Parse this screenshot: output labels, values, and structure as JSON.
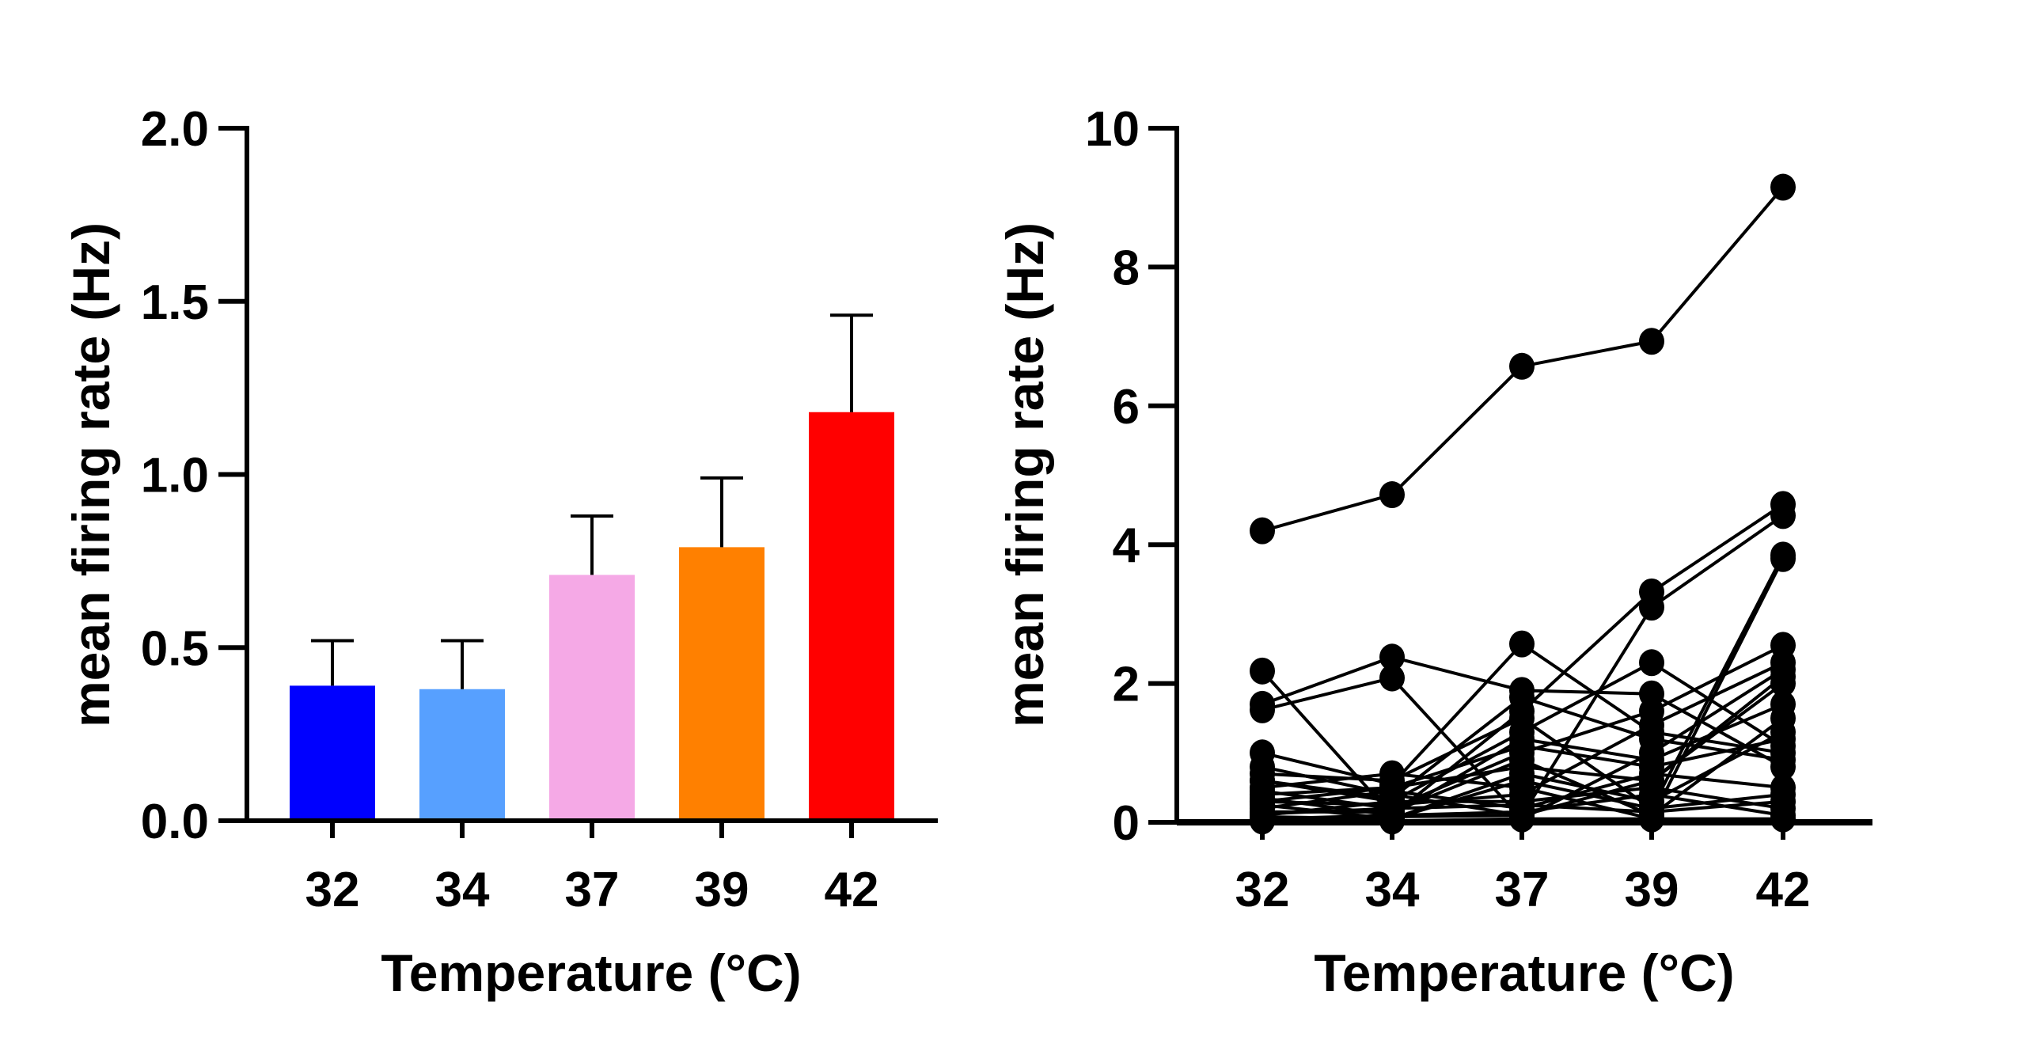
{
  "chart_data": [
    {
      "type": "bar",
      "xlabel": "Temperature (°C)",
      "ylabel": "mean firing rate (Hz)",
      "categories": [
        "32",
        "34",
        "37",
        "39",
        "42"
      ],
      "values": [
        0.39,
        0.38,
        0.71,
        0.79,
        1.18
      ],
      "error_upper": [
        0.52,
        0.52,
        0.88,
        0.99,
        1.46
      ],
      "colors": [
        "#0000ff",
        "#57a0ff",
        "#f5a9e6",
        "#ff8000",
        "#ff0000"
      ],
      "ylim": [
        0,
        2.0
      ],
      "yticks": [
        "0.0",
        "0.5",
        "1.0",
        "1.5",
        "2.0"
      ],
      "grid": false
    },
    {
      "type": "line",
      "xlabel": "Temperature (°C)",
      "ylabel": "mean firing rate (Hz)",
      "categories": [
        "32",
        "34",
        "37",
        "39",
        "42"
      ],
      "ylim": [
        0,
        10
      ],
      "yticks": [
        "0",
        "2",
        "4",
        "6",
        "8",
        "10"
      ],
      "grid": false,
      "marker": "filled-circle",
      "color": "#000000",
      "series": [
        {
          "values": [
            4.2,
            4.72,
            6.57,
            6.93,
            9.15
          ]
        },
        {
          "values": [
            2.18,
            0.1,
            1.6,
            3.32,
            4.58
          ]
        },
        {
          "values": [
            1.7,
            2.38,
            1.9,
            1.85,
            0.8
          ]
        },
        {
          "values": [
            1.62,
            2.08,
            0.05,
            1.0,
            2.2
          ]
        },
        {
          "values": [
            1.0,
            0.55,
            2.57,
            1.3,
            1.0
          ]
        },
        {
          "values": [
            0.8,
            0.4,
            0.1,
            3.1,
            4.42
          ]
        },
        {
          "values": [
            0.7,
            0.6,
            1.5,
            0.2,
            3.85
          ]
        },
        {
          "values": [
            0.6,
            0.3,
            1.3,
            2.3,
            1.1
          ]
        },
        {
          "values": [
            0.5,
            0.7,
            0.5,
            0.05,
            3.8
          ]
        },
        {
          "values": [
            0.45,
            0.2,
            1.0,
            1.6,
            2.55
          ]
        },
        {
          "values": [
            0.4,
            0.5,
            0.8,
            0.6,
            2.0
          ]
        },
        {
          "values": [
            0.35,
            0.1,
            1.2,
            0.9,
            1.7
          ]
        },
        {
          "values": [
            0.3,
            0.25,
            0.4,
            1.4,
            2.3
          ]
        },
        {
          "values": [
            0.25,
            0.05,
            0.7,
            0.3,
            1.3
          ]
        },
        {
          "values": [
            0.2,
            0.45,
            0.2,
            0.7,
            0.5
          ]
        },
        {
          "values": [
            0.15,
            0.15,
            0.9,
            0.1,
            1.5
          ]
        },
        {
          "values": [
            0.1,
            0.3,
            0.3,
            0.5,
            0.2
          ]
        },
        {
          "values": [
            0.08,
            0.05,
            0.6,
            0.2,
            0.4
          ]
        },
        {
          "values": [
            0.05,
            0.1,
            0.15,
            0.4,
            0.1
          ]
        },
        {
          "values": [
            0.02,
            0.02,
            0.05,
            0.05,
            0.05
          ]
        },
        {
          "values": [
            0.6,
            0.35,
            1.8,
            1.2,
            0.9
          ]
        },
        {
          "values": [
            0.3,
            0.5,
            1.1,
            0.8,
            1.2
          ]
        },
        {
          "values": [
            0.12,
            0.2,
            0.25,
            0.15,
            0.3
          ]
        },
        {
          "values": [
            0.04,
            0.08,
            0.1,
            0.6,
            2.1
          ]
        }
      ]
    }
  ]
}
